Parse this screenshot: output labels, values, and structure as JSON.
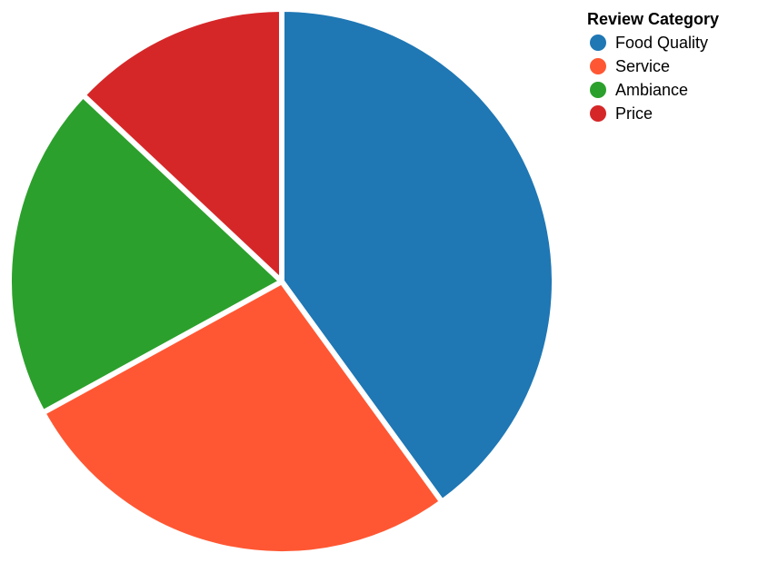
{
  "chart_data": {
    "type": "pie",
    "categories": [
      "Food Quality",
      "Service",
      "Ambiance",
      "Price"
    ],
    "values": [
      40,
      27,
      20,
      13
    ],
    "colors": [
      "#1f77b4",
      "#ff5733",
      "#2ca02c",
      "#d62728"
    ],
    "title": "",
    "legend": {
      "title": "Review Category",
      "position": "top-right"
    }
  },
  "legend": {
    "title": "Review Category",
    "items": [
      {
        "label": "Food Quality",
        "color": "#1f77b4",
        "icon": "circle"
      },
      {
        "label": "Service",
        "color": "#ff5733",
        "icon": "circle"
      },
      {
        "label": "Ambiance",
        "color": "#2ca02c",
        "icon": "circle"
      },
      {
        "label": "Price",
        "color": "#d62728",
        "icon": "circle"
      }
    ]
  }
}
